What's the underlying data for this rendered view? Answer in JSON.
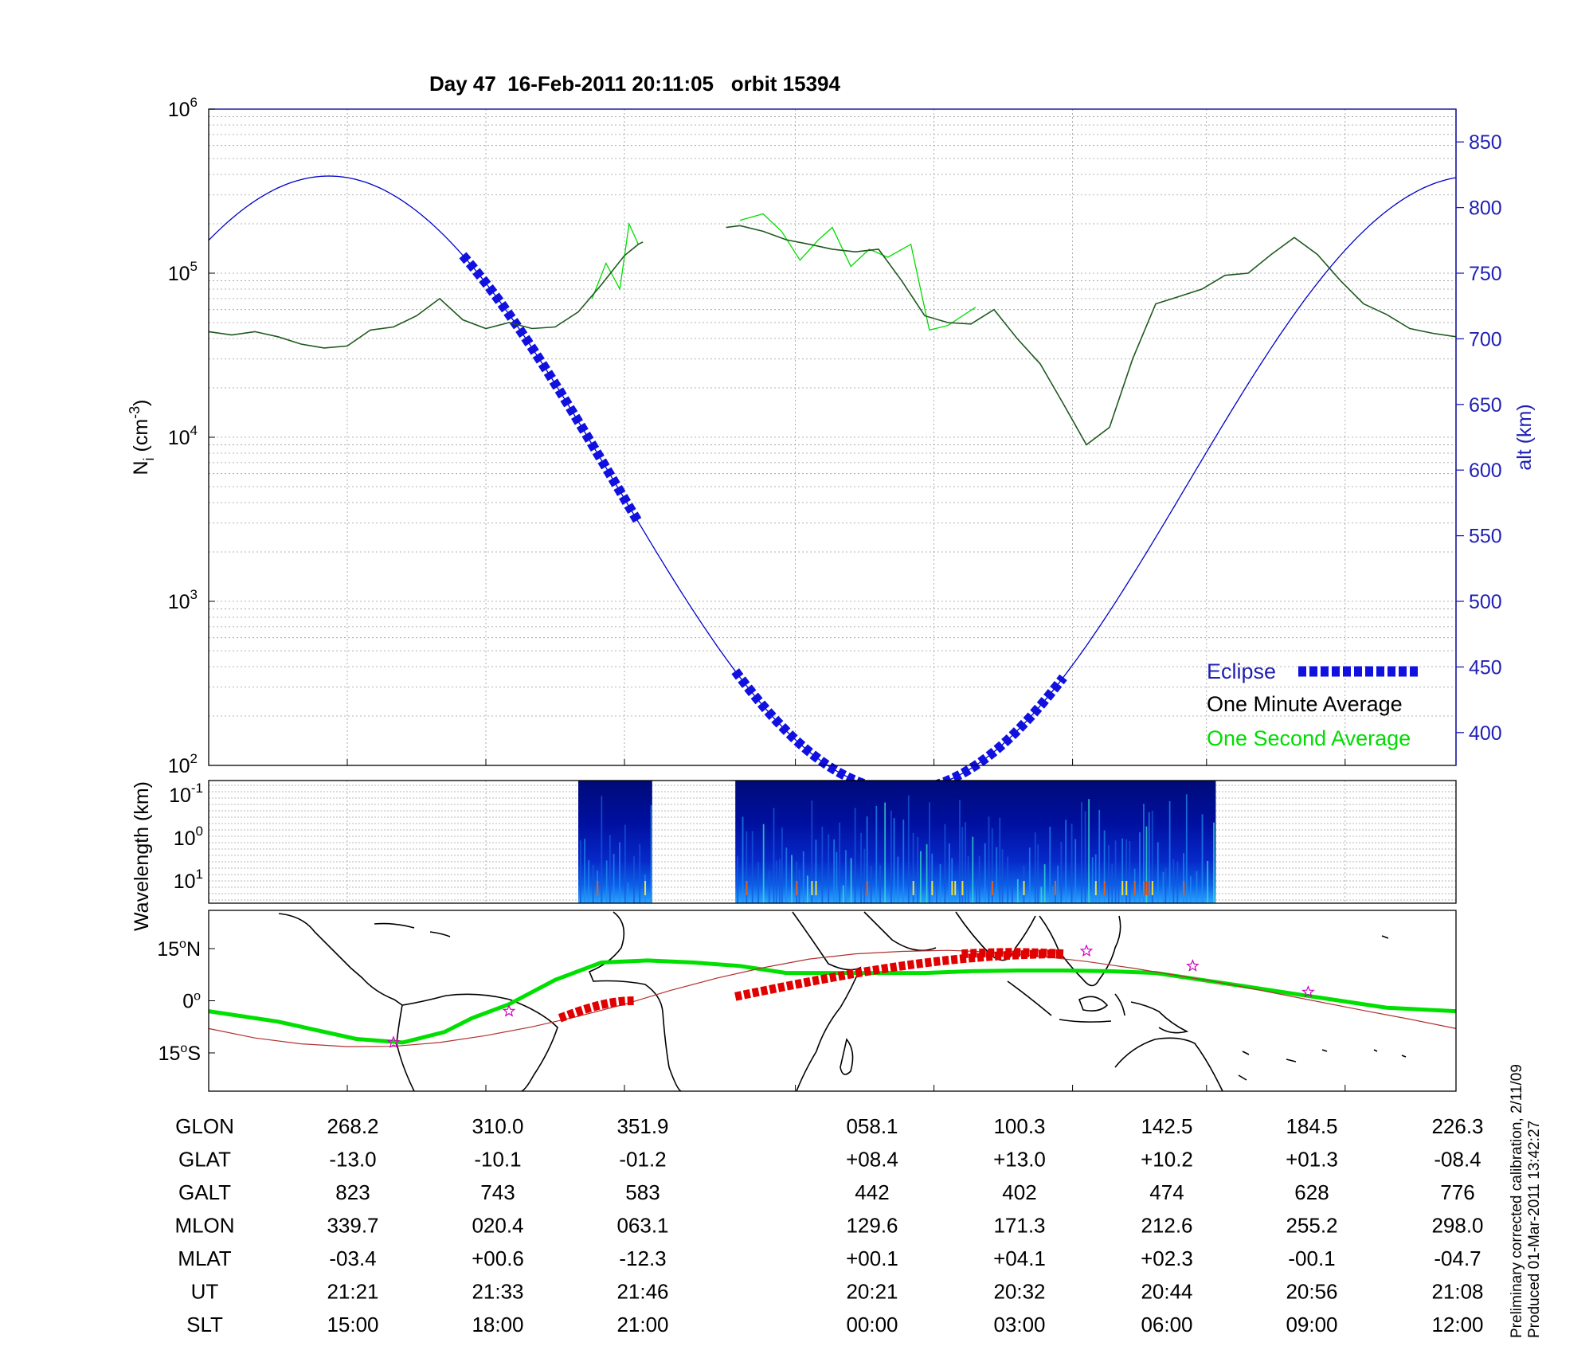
{
  "title": "Day 47  16-Feb-2011 20:11:05   orbit 15394",
  "colors": {
    "altitude": "#0000c8",
    "eclipse": "#1010e0",
    "minute_avg": "#1e5a1e",
    "second_avg": "#00dd00",
    "track_red": "#e00000",
    "map_green": "#00e000",
    "right_axis": "#1f1fb4"
  },
  "chart_data": [
    {
      "type": "line",
      "name": "density-altitude",
      "ylabel": "N",
      "ylabel_sub": "i",
      "ylabel_unit": " (cm",
      "ylabel_sup": "-3",
      "ylabel_close": ")",
      "yscale": "log",
      "ylim": [
        100,
        1000000
      ],
      "y_ticks": [
        {
          "base": "10",
          "exp": "2",
          "value": 100
        },
        {
          "base": "10",
          "exp": "3",
          "value": 1000
        },
        {
          "base": "10",
          "exp": "4",
          "value": 10000
        },
        {
          "base": "10",
          "exp": "5",
          "value": 100000
        },
        {
          "base": "10",
          "exp": "6",
          "value": 1000000
        }
      ],
      "y2label": "alt (km)",
      "y2lim": [
        375,
        875
      ],
      "y2_ticks": [
        "400",
        "450",
        "500",
        "550",
        "600",
        "650",
        "700",
        "750",
        "800",
        "850"
      ],
      "x_ticks_slt": [
        "15:00",
        "18:00",
        "21:00",
        "00:00",
        "03:00",
        "06:00",
        "09:00",
        "12:00"
      ],
      "xlim_slt": [
        12,
        39
      ],
      "grid": true,
      "legend": {
        "position": "bottom-right",
        "entries": [
          "Eclipse",
          "One Minute Average",
          "One Second Average"
        ]
      },
      "altitude_model": {
        "amplitude_km": 234,
        "mean_km": 590,
        "peak_slt": 14.6
      },
      "eclipse_slt": [
        [
          17.5,
          21.3
        ],
        [
          23.4,
          26.6
        ],
        [
          26.6,
          30.5
        ]
      ],
      "one_minute_average": {
        "x": [
          12.0,
          12.5,
          13.0,
          13.5,
          14.0,
          14.5,
          15.0,
          15.5,
          16.0,
          16.5,
          17.0,
          17.5,
          18.0,
          18.5,
          19.0,
          19.5,
          20.0,
          20.5,
          21.0,
          21.3,
          21.4
        ],
        "y": [
          44000,
          42000,
          44000,
          41000,
          37000,
          35000,
          36000,
          45000,
          47000,
          55000,
          70000,
          52000,
          46000,
          50000,
          46000,
          47000,
          58000,
          85000,
          128000,
          150000,
          155000
        ]
      },
      "one_minute_average_2": {
        "x": [
          23.2,
          23.5,
          24.0,
          24.5,
          25.0,
          25.5,
          26.0,
          26.5,
          27.0,
          27.5,
          28.0,
          28.5,
          29.0,
          29.5,
          30.0,
          30.5,
          31.0,
          31.5,
          32.0,
          32.5,
          33.0,
          33.5,
          34.0,
          34.5,
          35.0,
          35.5,
          36.0,
          36.5,
          37.0,
          37.5,
          38.0,
          38.5,
          39.0
        ],
        "y": [
          190000,
          195000,
          180000,
          160000,
          150000,
          140000,
          135000,
          140000,
          90000,
          55000,
          50000,
          49000,
          60000,
          40000,
          28000,
          16000,
          9000,
          11500,
          30000,
          65000,
          72000,
          80000,
          97000,
          100000,
          130000,
          165000,
          130000,
          90000,
          65000,
          56000,
          46000,
          43000,
          41000
        ]
      },
      "one_second_average": {
        "x": [
          20.3,
          20.6,
          20.9,
          21.1,
          21.3,
          23.5,
          24.0,
          24.4,
          24.8,
          25.2,
          25.5,
          25.9,
          26.3,
          26.7,
          27.2,
          27.6,
          28.0,
          28.6
        ],
        "y": [
          70000,
          115000,
          80000,
          200000,
          150000,
          210000,
          230000,
          180000,
          120000,
          160000,
          190000,
          110000,
          140000,
          125000,
          150000,
          45000,
          48000,
          62000
        ]
      }
    },
    {
      "type": "heatmap",
      "name": "spectrogram",
      "ylabel": "Wavelength (km)",
      "y_ticks": [
        {
          "base": "10",
          "exp": "-1"
        },
        {
          "base": "10",
          "exp": "0"
        },
        {
          "base": "10",
          "exp": "1"
        }
      ],
      "data_blocks_slt": [
        [
          20.0,
          21.6
        ],
        [
          23.4,
          33.8
        ]
      ]
    },
    {
      "type": "line",
      "name": "ground-track-map",
      "y_ticks": [
        {
          "deg": "15",
          "hemi": "N",
          "value": 15
        },
        {
          "deg": "0",
          "hemi": "",
          "value": 0
        },
        {
          "deg": "15",
          "hemi": "S",
          "value": -15
        }
      ],
      "ylim": [
        -26,
        26
      ],
      "track_green": {
        "slt": [
          12.0,
          13.5,
          15.2,
          16.2,
          17.1,
          17.7,
          18.5,
          19.5,
          20.5,
          21.5,
          22.5,
          23.5,
          24.5,
          25.5,
          26.5,
          27.5,
          28.5,
          29.5,
          30.5,
          31.5,
          32.5,
          33.5,
          34.5,
          35.5,
          36.5,
          37.5,
          39.0
        ],
        "lat": [
          -3,
          -6,
          -11,
          -12,
          -9,
          -5,
          -1,
          6,
          11,
          11.6,
          11,
          10,
          8,
          8,
          8,
          8,
          8.5,
          8.7,
          8.7,
          8.5,
          8,
          6,
          4,
          2,
          0,
          -2,
          -3
        ]
      },
      "track_red": {
        "slt": [
          12,
          13,
          14,
          15,
          16,
          17,
          18,
          19,
          20,
          21,
          22,
          23,
          24,
          25,
          26,
          27,
          28,
          29,
          30,
          31,
          32,
          33,
          34,
          35,
          36,
          37,
          38,
          39
        ],
        "lat": [
          -8,
          -10.7,
          -12.4,
          -13.2,
          -13.1,
          -12,
          -10,
          -7.5,
          -4.5,
          -1,
          3,
          6.5,
          9.5,
          12,
          13.5,
          14.2,
          14.5,
          14,
          12.8,
          11.3,
          9.4,
          7.2,
          5,
          2.4,
          -0.2,
          -2.8,
          -5.3,
          -8
        ]
      },
      "eclipse_track": [
        {
          "slt": [
            19.6,
            21.2
          ],
          "lat": [
            -5,
            0
          ]
        },
        {
          "slt": [
            23.4,
            30.5
          ],
          "lat": [
            1.2,
            13.5
          ]
        }
      ]
    }
  ],
  "table": {
    "row_labels": [
      "GLON",
      "GLAT",
      "GALT",
      "MLON",
      "MLAT",
      "UT",
      "SLT"
    ],
    "columns": [
      [
        "268.2",
        "-13.0",
        "823",
        "339.7",
        "-03.4",
        "21:21",
        "15:00"
      ],
      [
        "310.0",
        "-10.1",
        "743",
        "020.4",
        "+00.6",
        "21:33",
        "18:00"
      ],
      [
        "351.9",
        "-01.2",
        "583",
        "063.1",
        "-12.3",
        "21:46",
        "21:00"
      ],
      [
        "058.1",
        "+08.4",
        "442",
        "129.6",
        "+00.1",
        "20:21",
        "00:00"
      ],
      [
        "100.3",
        "+13.0",
        "402",
        "171.3",
        "+04.1",
        "20:32",
        "03:00"
      ],
      [
        "142.5",
        "+10.2",
        "474",
        "212.6",
        "+02.3",
        "20:44",
        "06:00"
      ],
      [
        "184.5",
        "+01.3",
        "628",
        "255.2",
        "-00.1",
        "20:56",
        "09:00"
      ],
      [
        "226.3",
        "-08.4",
        "776",
        "298.0",
        "-04.7",
        "21:08",
        "12:00"
      ]
    ]
  },
  "footnote": {
    "line1": "Preliminary corrected calibration, 2/11/09",
    "line2": "Produced 01-Mar-2011 13:42:27"
  }
}
